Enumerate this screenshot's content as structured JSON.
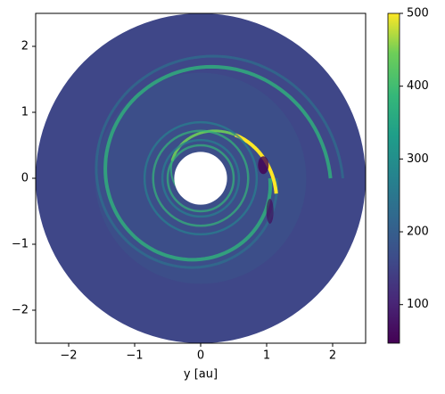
{
  "chart_data": {
    "type": "image",
    "xlabel": "y [au]",
    "xlim": [
      -2.5,
      2.5
    ],
    "ylim": [
      -2.5,
      2.5
    ],
    "xticks": [
      {
        "value": -2,
        "label": "−2"
      },
      {
        "value": -1,
        "label": "−1"
      },
      0,
      1,
      2
    ],
    "yticks": [
      {
        "value": -2,
        "label": "−2"
      },
      {
        "value": -1,
        "label": "−1"
      },
      0,
      1,
      2
    ],
    "colormap": "viridis",
    "clim": [
      47,
      500
    ],
    "cticks": [
      100,
      200,
      300,
      400,
      500
    ]
  }
}
